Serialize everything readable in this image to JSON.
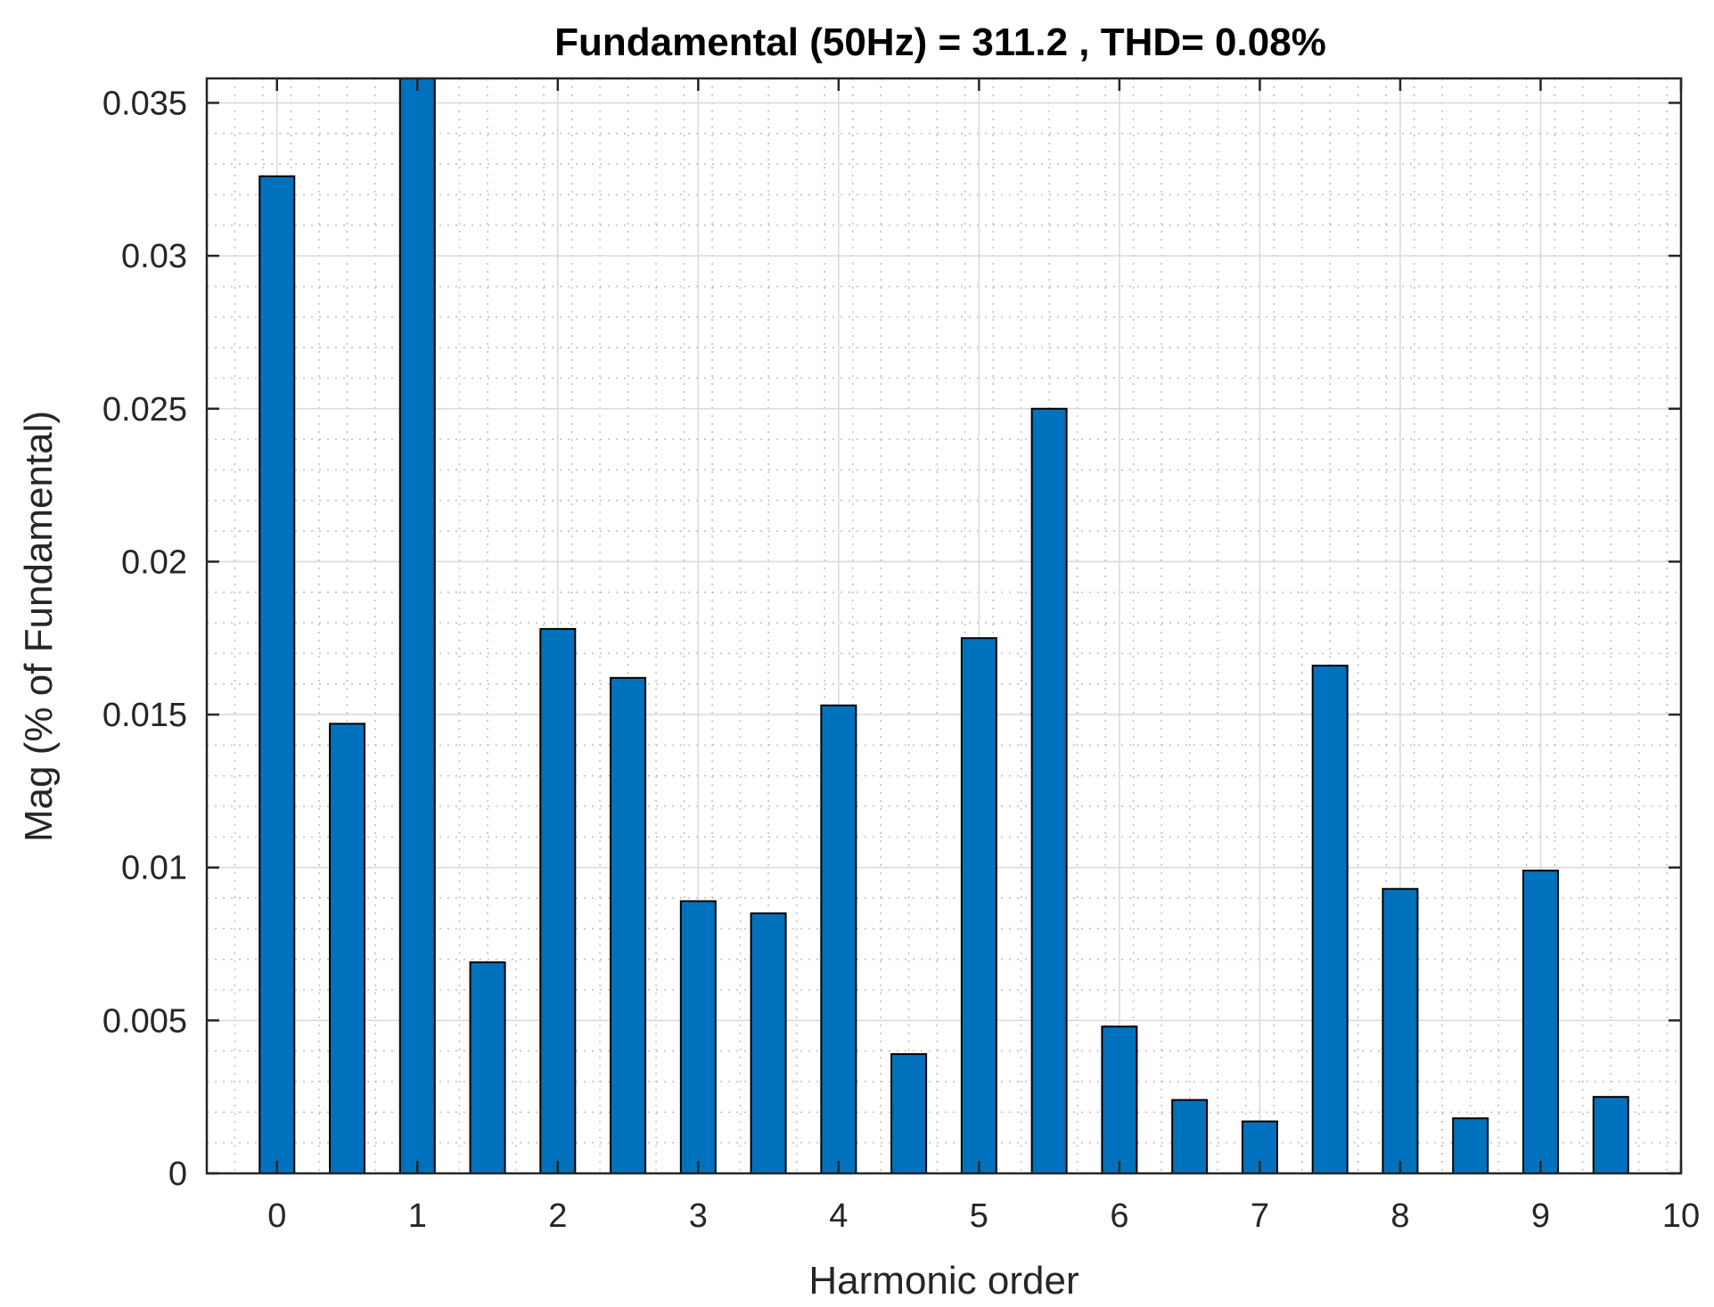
{
  "chart_data": {
    "type": "bar",
    "title": "Fundamental (50Hz) = 311.2 , THD= 0.08%",
    "xlabel": "Harmonic order",
    "ylabel": "Mag (% of Fundamental)",
    "x": [
      0,
      0.5,
      1,
      1.5,
      2,
      2.5,
      3,
      3.5,
      4,
      4.5,
      5,
      5.5,
      6,
      6.5,
      7,
      7.5,
      8,
      8.5,
      9,
      9.5
    ],
    "values": [
      0.0326,
      0.0147,
      0.0358,
      0.0069,
      0.0178,
      0.0162,
      0.0089,
      0.0085,
      0.0153,
      0.0039,
      0.0175,
      0.025,
      0.0048,
      0.0024,
      0.0017,
      0.0166,
      0.0093,
      0.0018,
      0.0099,
      0.0025
    ],
    "xlim": [
      -0.5,
      10
    ],
    "ylim": [
      0,
      0.0358
    ],
    "xticks": [
      0,
      1,
      2,
      3,
      4,
      5,
      6,
      7,
      8,
      9,
      10
    ],
    "xtick_labels": [
      "0",
      "1",
      "2",
      "3",
      "4",
      "5",
      "6",
      "7",
      "8",
      "9",
      "10"
    ],
    "yticks": [
      0,
      0.005,
      0.01,
      0.015,
      0.02,
      0.025,
      0.03,
      0.035
    ],
    "ytick_labels": [
      "0",
      "0.005",
      "0.01",
      "0.015",
      "0.02",
      "0.025",
      "0.03",
      "0.035"
    ],
    "grid": true,
    "minor_grid": true,
    "bar_color": "#0072BD"
  }
}
